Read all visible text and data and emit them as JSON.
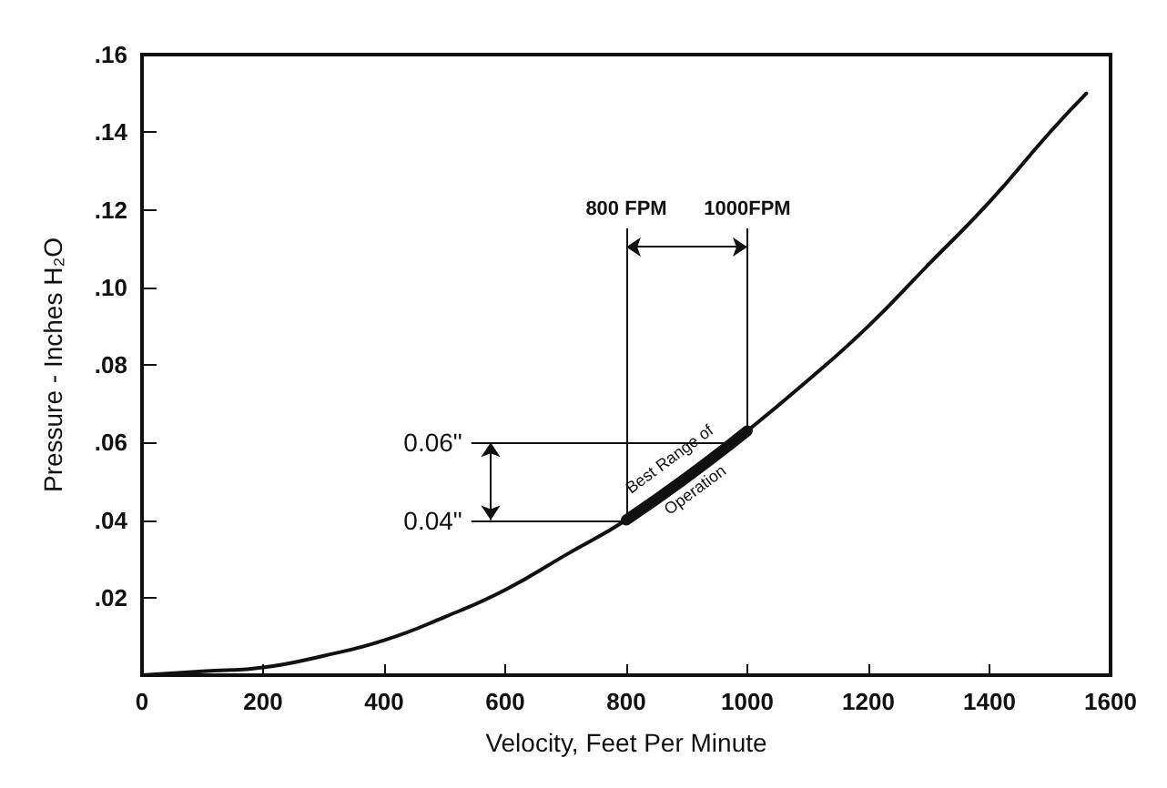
{
  "chart_data": {
    "type": "line",
    "xlabel": "Velocity, Feet Per Minute",
    "ylabel": "Pressure - Inches H₂O",
    "x": [
      0,
      100,
      200,
      300,
      400,
      500,
      600,
      700,
      800,
      900,
      1000,
      1100,
      1200,
      1300,
      1400,
      1500,
      1560
    ],
    "series": [
      {
        "color": "#111111",
        "values": [
          0,
          0.001,
          0.002,
          0.005,
          0.009,
          0.015,
          0.022,
          0.031,
          0.04,
          0.051,
          0.063,
          0.076,
          0.09,
          0.106,
          0.122,
          0.14,
          0.15
        ]
      },
      {
        "color": "#111111",
        "x": [
          800,
          900,
          1000
        ],
        "values": [
          0.04,
          0.051,
          0.063
        ]
      }
    ],
    "xlim": [
      0,
      1600
    ],
    "xticks": [
      0,
      200,
      400,
      600,
      800,
      1000,
      1200,
      1400,
      1600
    ],
    "ylim": [
      0,
      0.16
    ],
    "yticks": [
      {
        "value": 0,
        "label": null
      },
      {
        "value": 0.02,
        "label": ".02"
      },
      {
        "value": 0.04,
        "label": ".04"
      },
      {
        "value": 0.06,
        "label": ".06"
      },
      {
        "value": 0.08,
        "label": ".08"
      },
      {
        "value": 0.1,
        "label": ".10"
      },
      {
        "value": 0.12,
        "label": ".12"
      },
      {
        "value": 0.14,
        "label": ".14"
      },
      {
        "value": 0.16,
        "label": ".16"
      }
    ],
    "ref_lines": [
      {
        "axis": "x",
        "value": 800,
        "label": "800 FPM"
      },
      {
        "axis": "x",
        "value": 1000,
        "label": "1000FPM"
      },
      {
        "axis": "y",
        "value": 0.06,
        "label": "0.06\""
      },
      {
        "axis": "y",
        "value": 0.04,
        "label": "0.04\""
      }
    ],
    "annotations": [
      {
        "text": "Best Range of Operation",
        "x": 900,
        "y": 0.051
      }
    ],
    "grid": false,
    "marker": "none",
    "line_style": "solid"
  }
}
